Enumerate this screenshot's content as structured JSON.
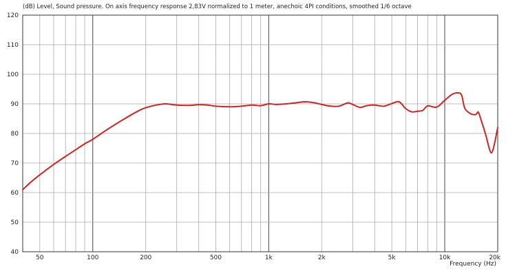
{
  "chart_data": {
    "type": "line",
    "title": "(dB)  Level, Sound pressure. On axis frequency response 2,83V normalized to 1 meter, anechoic 4PI conditions, smoothed 1/6 octave",
    "xlabel": "Frequency  (Hz)",
    "ylabel": "(dB)",
    "x_scale": "log",
    "xlim": [
      40,
      20000
    ],
    "ylim": [
      40,
      120
    ],
    "grid": true,
    "x_tick_labels": [
      {
        "value": 50,
        "label": "50"
      },
      {
        "value": 100,
        "label": "100"
      },
      {
        "value": 200,
        "label": "200"
      },
      {
        "value": 500,
        "label": "500"
      },
      {
        "value": 1000,
        "label": "1k"
      },
      {
        "value": 2000,
        "label": "2k"
      },
      {
        "value": 5000,
        "label": "5k"
      },
      {
        "value": 10000,
        "label": "10k"
      },
      {
        "value": 20000,
        "label": "20k"
      }
    ],
    "y_tick_labels": [
      "40",
      "50",
      "60",
      "70",
      "80",
      "90",
      "100",
      "110",
      "120"
    ],
    "series": [
      {
        "color": "#d42020",
        "x": [
          40,
          45,
          50,
          60,
          70,
          80,
          90,
          100,
          120,
          150,
          180,
          200,
          230,
          260,
          300,
          350,
          400,
          450,
          500,
          600,
          700,
          800,
          900,
          1000,
          1100,
          1200,
          1400,
          1600,
          1800,
          2000,
          2200,
          2500,
          2800,
          3000,
          3300,
          3600,
          4000,
          4500,
          5000,
          5500,
          6000,
          6500,
          7000,
          7500,
          8000,
          9000,
          10000,
          11000,
          12000,
          12500,
          13000,
          14000,
          15000,
          15500,
          16000,
          17000,
          18000,
          18500,
          19000,
          20000
        ],
        "y": [
          61,
          63.8,
          66,
          69.5,
          72.2,
          74.5,
          76.5,
          78,
          81.2,
          84.8,
          87.5,
          88.7,
          89.6,
          90,
          89.6,
          89.5,
          89.7,
          89.6,
          89.2,
          89,
          89.2,
          89.6,
          89.4,
          90,
          89.8,
          89.9,
          90.3,
          90.7,
          90.4,
          89.8,
          89.3,
          89.2,
          90.3,
          89.8,
          88.8,
          89.4,
          89.6,
          89.2,
          90.1,
          90.7,
          88.4,
          87.3,
          87.5,
          87.8,
          89.3,
          88.9,
          91.2,
          93.2,
          93.7,
          92.8,
          88.5,
          86.7,
          86.4,
          87.2,
          85,
          80,
          74.5,
          73.5,
          75.5,
          82
        ]
      }
    ]
  }
}
